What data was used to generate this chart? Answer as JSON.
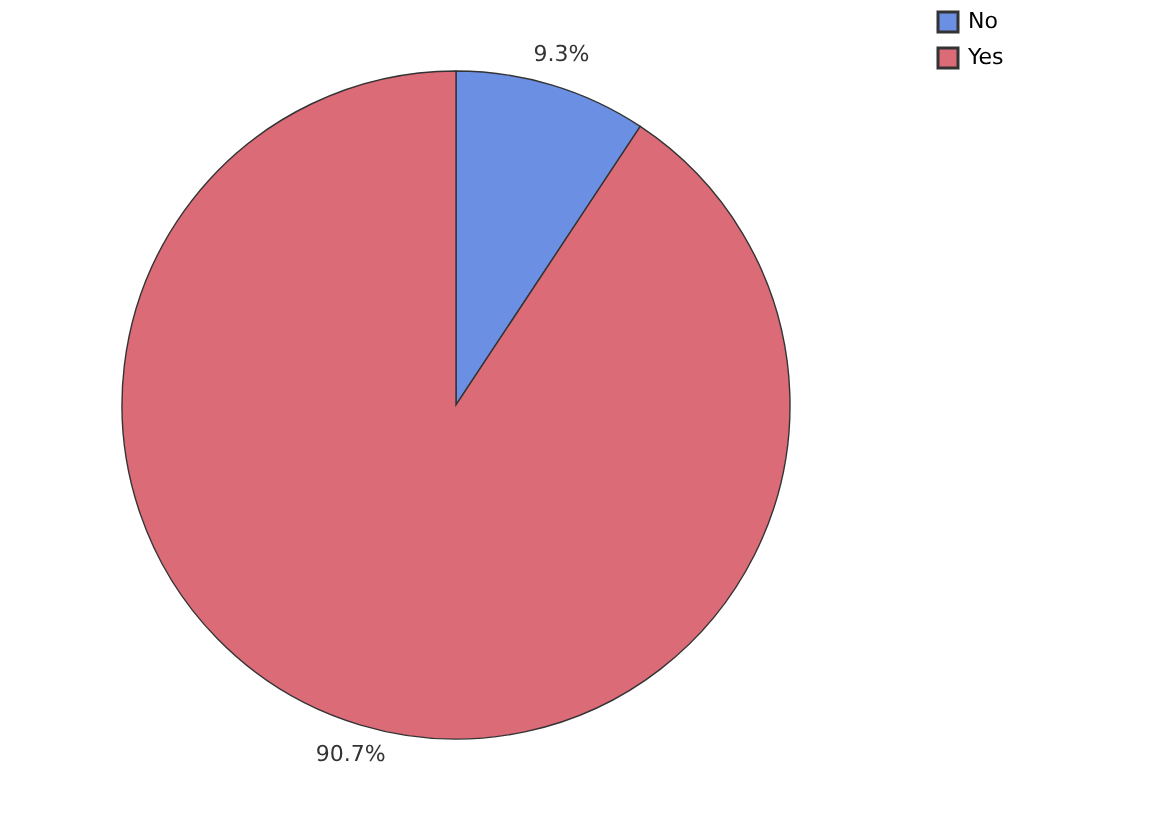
{
  "chart_data": {
    "type": "pie",
    "categories": [
      "No",
      "Yes"
    ],
    "values": [
      9.3,
      90.7
    ],
    "colors": [
      "#6a8fe3",
      "#dc6b78"
    ],
    "value_labels": [
      "9.3%",
      "90.7%"
    ],
    "legend": "top right"
  }
}
